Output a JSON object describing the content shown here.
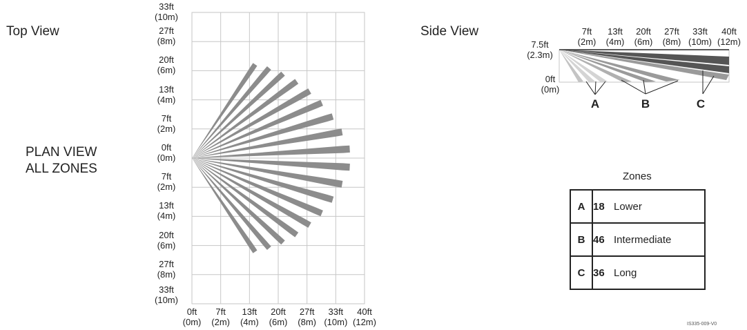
{
  "top_view": {
    "title": "Top View",
    "plan_label": [
      "PLAN VIEW",
      "ALL ZONES"
    ],
    "y_ticks": [
      [
        "33ft",
        "(10m)"
      ],
      [
        "27ft",
        "(8m)"
      ],
      [
        "20ft",
        "(6m)"
      ],
      [
        "13ft",
        "(4m)"
      ],
      [
        "7ft",
        "(2m)"
      ],
      [
        "0ft",
        "(0m)"
      ],
      [
        "7ft",
        "(2m)"
      ],
      [
        "13ft",
        "(4m)"
      ],
      [
        "20ft",
        "(6m)"
      ],
      [
        "27ft",
        "(8m)"
      ],
      [
        "33ft",
        "(10m)"
      ]
    ],
    "x_ticks": [
      [
        "0ft",
        "(0m)"
      ],
      [
        "7ft",
        "(2m)"
      ],
      [
        "13ft",
        "(4m)"
      ],
      [
        "20ft",
        "(6m)"
      ],
      [
        "27ft",
        "(8m)"
      ],
      [
        "33ft",
        "(10m)"
      ],
      [
        "40ft",
        "(12m)"
      ]
    ],
    "beam_count": 18,
    "beam_angle_half_spread_deg": 56,
    "beam_color": "#8c8c8c",
    "grid_color": "#c6c6c6"
  },
  "side_view": {
    "title": "Side View",
    "height_ticks": [
      [
        "7.5ft",
        "(2.3m)"
      ],
      [
        "0ft",
        "(0m)"
      ]
    ],
    "distance_ticks": [
      [
        "7ft",
        "(2m)"
      ],
      [
        "13ft",
        "(4m)"
      ],
      [
        "20ft",
        "(6m)"
      ],
      [
        "27ft",
        "(8m)"
      ],
      [
        "33ft",
        "(10m)"
      ],
      [
        "40ft",
        "(12m)"
      ]
    ],
    "zone_markers": [
      "A",
      "B",
      "C"
    ],
    "colors": {
      "lower": "#d4d4d4",
      "intermediate": "#9a9a9a",
      "long": "#555555"
    }
  },
  "zones": {
    "title": "Zones",
    "rows": [
      {
        "letter": "A",
        "count": "18",
        "name": "Lower"
      },
      {
        "letter": "B",
        "count": "46",
        "name": "Intermediate"
      },
      {
        "letter": "C",
        "count": "36",
        "name": "Long"
      }
    ]
  },
  "doc_id": "IS335-009-V0"
}
